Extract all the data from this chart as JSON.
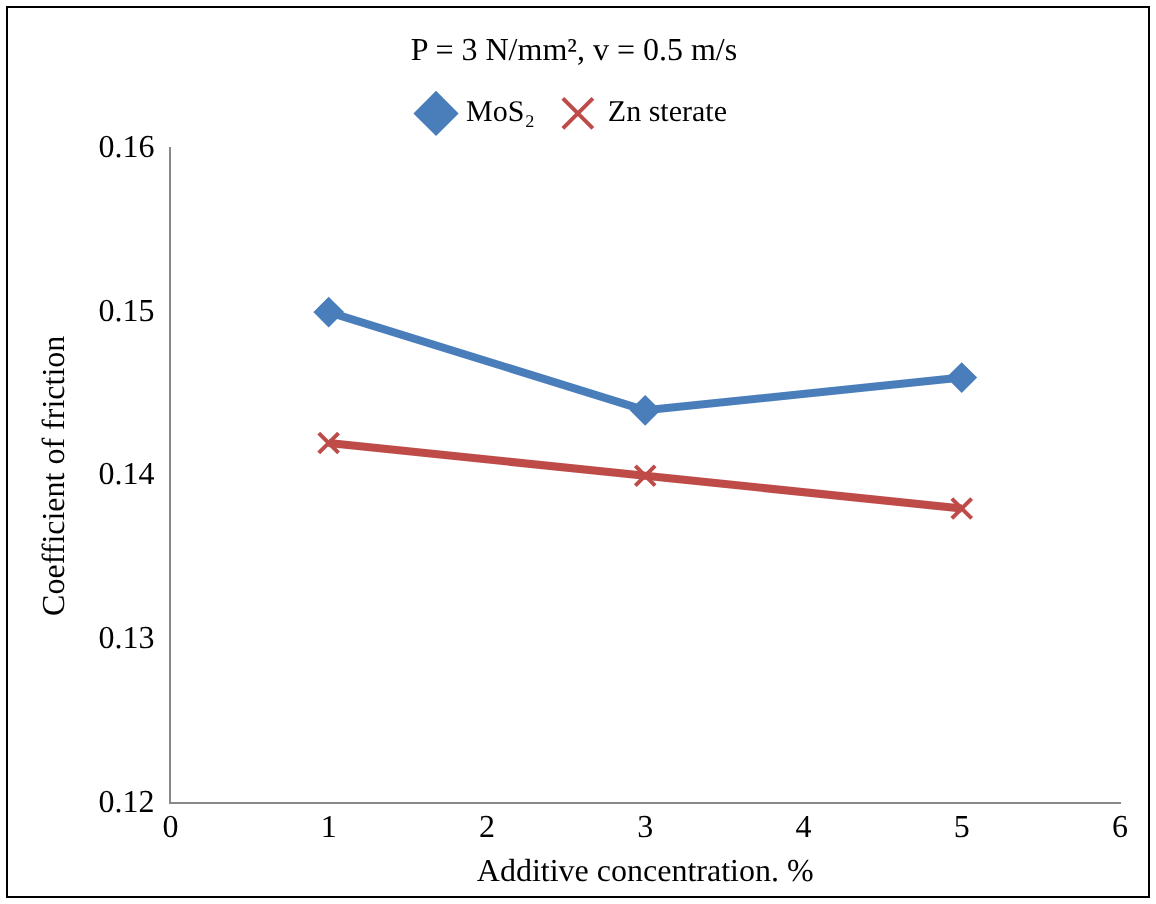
{
  "chart_data": {
    "type": "line",
    "title": "P = 3 N/mm², v = 0.5 m/s",
    "xlabel": "Additive concentration. %",
    "ylabel": "Coefficient of friction",
    "x": [
      1,
      3,
      5
    ],
    "series": [
      {
        "name": "MoS₂",
        "color": "#4a7ebb",
        "values": [
          0.15,
          0.144,
          0.146
        ],
        "marker": "diamond"
      },
      {
        "name": "Zn sterate",
        "color": "#be4b48",
        "values": [
          0.142,
          0.14,
          0.138
        ],
        "marker": "cross"
      }
    ],
    "xlim": [
      0,
      6
    ],
    "xticks": [
      0,
      1,
      2,
      3,
      4,
      5,
      6
    ],
    "ylim": [
      0.12,
      0.16
    ],
    "yticks": [
      0.12,
      0.13,
      0.14,
      0.15,
      0.16
    ],
    "grid": false,
    "legend": "top",
    "line_style": "solid"
  }
}
